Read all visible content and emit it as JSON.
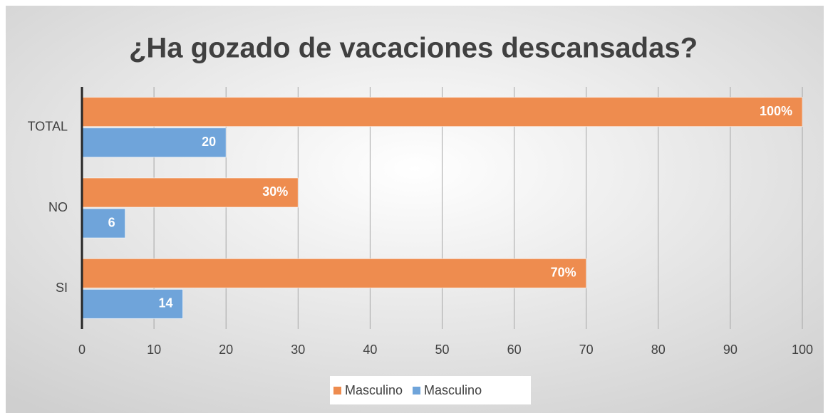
{
  "chart_data": {
    "type": "bar",
    "orientation": "horizontal",
    "title": "¿Ha gozado de vacaciones descansadas?",
    "categories": [
      "SI",
      "NO",
      "TOTAL"
    ],
    "series": [
      {
        "name": "Masculino",
        "color": "#ee8c4f",
        "values": [
          70,
          30,
          100
        ],
        "value_labels": [
          "70%",
          "30%",
          "100%"
        ]
      },
      {
        "name": "Masculino",
        "color": "#6fa4da",
        "values": [
          14,
          6,
          20
        ]
      }
    ],
    "xlim": [
      0,
      100
    ],
    "xticks": [
      0,
      10,
      20,
      30,
      40,
      50,
      60,
      70,
      80,
      90,
      100
    ],
    "grid": true,
    "legend": "bottom"
  }
}
